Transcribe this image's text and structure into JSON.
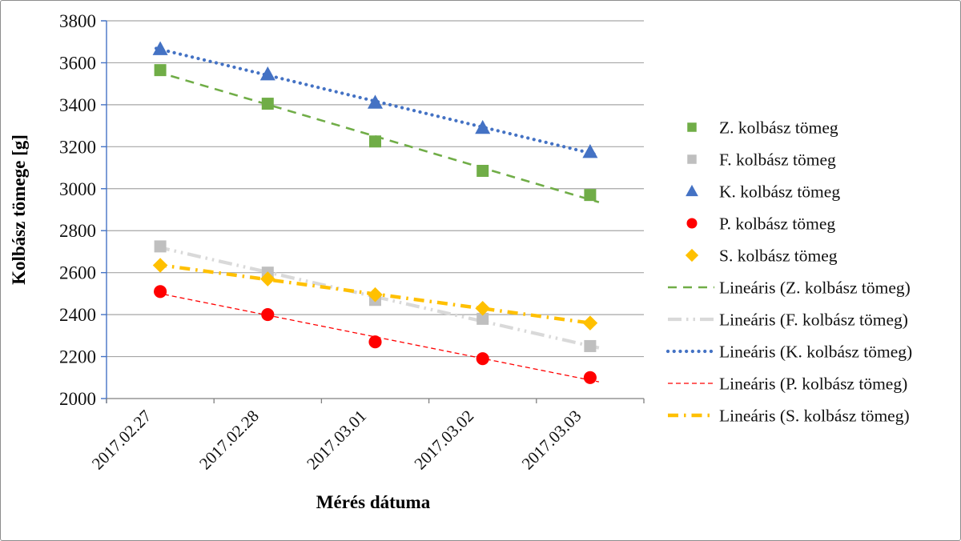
{
  "frame": {
    "background": "#ffffff",
    "border_color": "#8c8c8c"
  },
  "chart_data": {
    "type": "scatter",
    "title": "",
    "xlabel": "Mérés dátuma",
    "ylabel": "Kolbász tömege [g]",
    "grid": true,
    "legend_position": "right",
    "categories": [
      "2017.02.27",
      "2017.02.28",
      "2017.03.01",
      "2017.03.02",
      "2017.03.03"
    ],
    "y_axis": {
      "min": 2000,
      "max": 3800,
      "step": 200,
      "tick_labels": [
        "2000",
        "2200",
        "2400",
        "2600",
        "2800",
        "3000",
        "3200",
        "3400",
        "3600",
        "3800"
      ]
    },
    "axis_colors": {
      "y_axis_line": "#4472c4",
      "x_axis_line": "#808080",
      "gridline": "#a6a6a6"
    },
    "series": [
      {
        "name": "Z. kolbász tömeg",
        "marker": "square",
        "color": "#70ad47",
        "values": [
          3565,
          3405,
          3225,
          3085,
          2970
        ]
      },
      {
        "name": "F. kolbász tömeg",
        "marker": "square",
        "color": "#bfbfbf",
        "values": [
          2725,
          2600,
          2470,
          2380,
          2250
        ]
      },
      {
        "name": "K. kolbász tömeg",
        "marker": "triangle",
        "color": "#4472c4",
        "values": [
          3665,
          3545,
          3410,
          3290,
          3175
        ]
      },
      {
        "name": "P. kolbász tömeg",
        "marker": "circle",
        "color": "#ff0000",
        "values": [
          2510,
          2400,
          2270,
          2190,
          2100
        ]
      },
      {
        "name": "S. kolbász tömeg",
        "marker": "diamond",
        "color": "#ffc000",
        "values": [
          2635,
          2570,
          2495,
          2430,
          2360
        ]
      }
    ],
    "trendlines": [
      {
        "name": "Lineáris (Z. kolbász tömeg)",
        "series": 0,
        "color": "#70ad47",
        "style": "dash",
        "width": 2.6
      },
      {
        "name": "Lineáris (F. kolbász tömeg)",
        "series": 1,
        "color": "#d9d9d9",
        "style": "dash-dot-dot",
        "width": 4.2
      },
      {
        "name": "Lineáris (K. kolbász tömeg)",
        "series": 2,
        "color": "#4472c4",
        "style": "dot",
        "width": 4.2
      },
      {
        "name": "Lineáris (P. kolbász tömeg)",
        "series": 3,
        "color": "#ff0000",
        "style": "fine-dash",
        "width": 1.3
      },
      {
        "name": "Lineáris (S. kolbász tömeg)",
        "series": 4,
        "color": "#ffc000",
        "style": "dash-dot",
        "width": 4.4
      }
    ]
  }
}
